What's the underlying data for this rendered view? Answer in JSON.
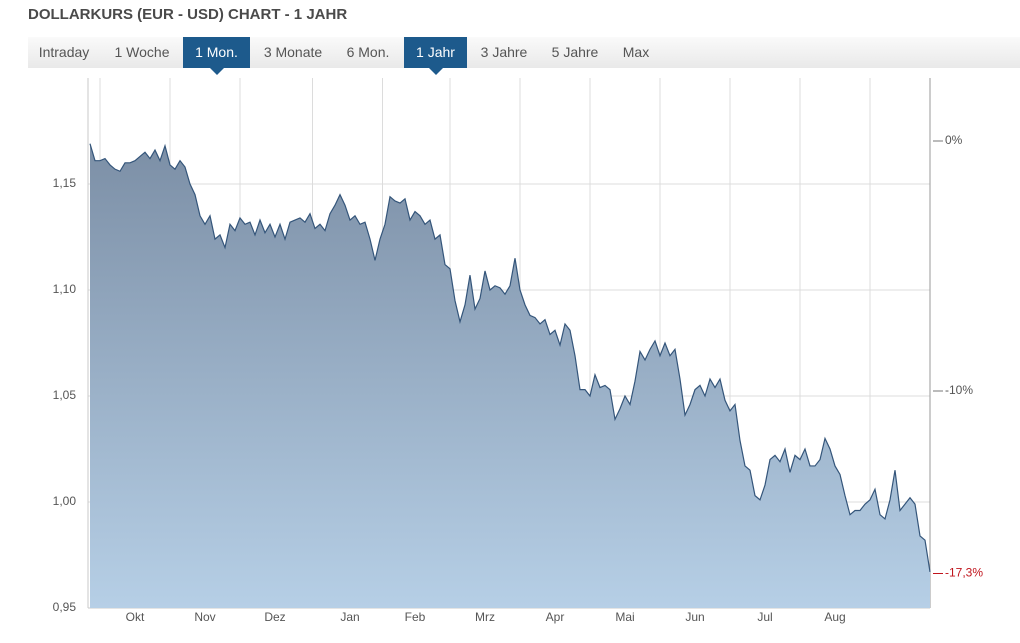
{
  "header": {
    "title": "DOLLARKURS (EUR - USD) CHART - 1 JAHR"
  },
  "tabs": [
    "Intraday",
    "1 Woche",
    "1 Mon.",
    "3 Monate",
    "6 Mon.",
    "1 Jahr",
    "3 Jahre",
    "5 Jahre",
    "Max"
  ],
  "active_tabs": [
    2,
    5
  ],
  "chart_data": {
    "type": "area",
    "color": "#34557a",
    "grid": true,
    "categories": [
      null,
      null,
      null,
      null,
      null,
      null,
      null,
      null,
      null,
      "Okt",
      null,
      null,
      null,
      null,
      null,
      null,
      null,
      null,
      null,
      null,
      null,
      null,
      null,
      "Nov",
      null,
      null,
      null,
      null,
      null,
      null,
      null,
      null,
      null,
      null,
      null,
      null,
      null,
      "Dez",
      null,
      null,
      null,
      null,
      null,
      null,
      null,
      null,
      null,
      null,
      null,
      null,
      null,
      null,
      "Jan",
      null,
      null,
      null,
      null,
      null,
      null,
      null,
      null,
      null,
      null,
      null,
      null,
      "Feb",
      null,
      null,
      null,
      null,
      null,
      null,
      null,
      null,
      null,
      null,
      null,
      null,
      null,
      "Mrz",
      null,
      null,
      null,
      null,
      null,
      null,
      null,
      null,
      null,
      null,
      null,
      null,
      null,
      "Apr",
      null,
      null,
      null,
      null,
      null,
      null,
      null,
      null,
      null,
      null,
      null,
      null,
      null,
      "Mai",
      null,
      null,
      null,
      null,
      null,
      null,
      null,
      null,
      null,
      null,
      null,
      null,
      null,
      "Jun",
      null,
      null,
      null,
      null,
      null,
      null,
      null,
      null,
      null,
      null,
      null,
      null,
      null,
      "Jul",
      null,
      null,
      null,
      null,
      null,
      null,
      null,
      null,
      null,
      null,
      null,
      null,
      null,
      "Aug",
      null,
      null,
      null,
      null,
      null,
      null,
      null,
      null,
      null,
      null,
      null,
      null,
      null,
      null,
      null,
      null,
      null,
      null,
      null
    ],
    "values": [
      1.169,
      1.161,
      1.161,
      1.162,
      1.159,
      1.157,
      1.156,
      1.16,
      1.16,
      1.161,
      1.163,
      1.165,
      1.162,
      1.166,
      1.161,
      1.168,
      1.159,
      1.157,
      1.161,
      1.158,
      1.15,
      1.145,
      1.135,
      1.131,
      1.135,
      1.124,
      1.126,
      1.12,
      1.131,
      1.128,
      1.134,
      1.131,
      1.132,
      1.126,
      1.133,
      1.127,
      1.131,
      1.125,
      1.131,
      1.124,
      1.132,
      1.133,
      1.134,
      1.132,
      1.136,
      1.129,
      1.131,
      1.128,
      1.136,
      1.14,
      1.145,
      1.14,
      1.133,
      1.135,
      1.131,
      1.132,
      1.124,
      1.114,
      1.124,
      1.131,
      1.144,
      1.142,
      1.141,
      1.143,
      1.133,
      1.137,
      1.135,
      1.131,
      1.133,
      1.124,
      1.126,
      1.112,
      1.11,
      1.095,
      1.085,
      1.093,
      1.107,
      1.091,
      1.096,
      1.109,
      1.1,
      1.102,
      1.101,
      1.098,
      1.102,
      1.115,
      1.1,
      1.093,
      1.088,
      1.087,
      1.084,
      1.086,
      1.079,
      1.081,
      1.074,
      1.084,
      1.081,
      1.069,
      1.053,
      1.053,
      1.05,
      1.06,
      1.054,
      1.055,
      1.053,
      1.039,
      1.044,
      1.05,
      1.046,
      1.057,
      1.071,
      1.067,
      1.072,
      1.076,
      1.069,
      1.075,
      1.069,
      1.072,
      1.058,
      1.041,
      1.046,
      1.053,
      1.055,
      1.05,
      1.058,
      1.054,
      1.058,
      1.048,
      1.043,
      1.046,
      1.029,
      1.017,
      1.015,
      1.003,
      1.001,
      1.008,
      1.02,
      1.022,
      1.019,
      1.025,
      1.014,
      1.022,
      1.02,
      1.025,
      1.017,
      1.017,
      1.02,
      1.03,
      1.025,
      1.017,
      1.013,
      1.003,
      0.994,
      0.996,
      0.996,
      0.999,
      1.001,
      1.006,
      0.994,
      0.992,
      1.001,
      1.015,
      0.996,
      0.999,
      1.002,
      0.999,
      0.984,
      0.982,
      0.967
    ],
    "ylim": [
      0.95,
      1.2
    ],
    "yticks": [
      {
        "value": 0.95,
        "label": "0,95"
      },
      {
        "value": 1.0,
        "label": "1,00"
      },
      {
        "value": 1.05,
        "label": "1,05"
      },
      {
        "value": 1.1,
        "label": "1,10"
      },
      {
        "value": 1.15,
        "label": "1,15"
      }
    ],
    "y2lim": [
      -18.68,
      2.52
    ],
    "y2ticks": [
      {
        "value": 0,
        "label": "0%"
      },
      {
        "value": -10,
        "label": "-10%"
      }
    ],
    "annotation": {
      "value": -17.3,
      "label": "-17,3%",
      "color": "#c0141c"
    }
  }
}
